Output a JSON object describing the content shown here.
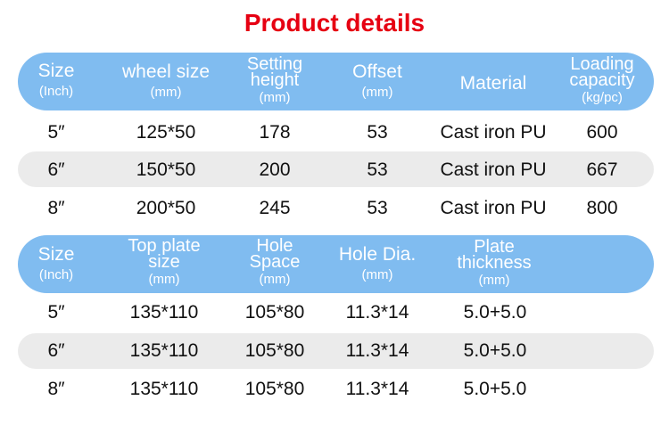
{
  "title": "Product details",
  "table1": {
    "headers": [
      {
        "main": "Size",
        "unit": "(Inch)"
      },
      {
        "main": "wheel size",
        "unit": "(mm)"
      },
      {
        "main": "Setting height",
        "unit": "(mm)"
      },
      {
        "main": "Offset",
        "unit": "(mm)"
      },
      {
        "main": "Material",
        "unit": ""
      },
      {
        "main": "Loading capacity",
        "unit": "(kg/pc)"
      }
    ],
    "rows": [
      [
        "5″",
        "125*50",
        "178",
        "53",
        "Cast iron PU",
        "600"
      ],
      [
        "6″",
        "150*50",
        "200",
        "53",
        "Cast iron PU",
        "667"
      ],
      [
        "8″",
        "200*50",
        "245",
        "53",
        "Cast iron PU",
        "800"
      ]
    ]
  },
  "table2": {
    "headers": [
      {
        "main": "Size",
        "unit": "(Inch)"
      },
      {
        "main": "Top plate size",
        "unit": "(mm)"
      },
      {
        "main": "Hole Space",
        "unit": "(mm)"
      },
      {
        "main": "Hole Dia.",
        "unit": "(mm)"
      },
      {
        "main": "Plate thickness",
        "unit": "(mm)"
      }
    ],
    "rows": [
      [
        "5″",
        "135*110",
        "105*80",
        "11.3*14",
        "5.0+5.0"
      ],
      [
        "6″",
        "135*110",
        "105*80",
        "11.3*14",
        "5.0+5.0"
      ],
      [
        "8″",
        "135*110",
        "105*80",
        "11.3*14",
        "5.0+5.0"
      ]
    ]
  },
  "colors": {
    "title": "#e60012",
    "header_bg": "#80bcf0",
    "stripe": "#ebebeb"
  }
}
